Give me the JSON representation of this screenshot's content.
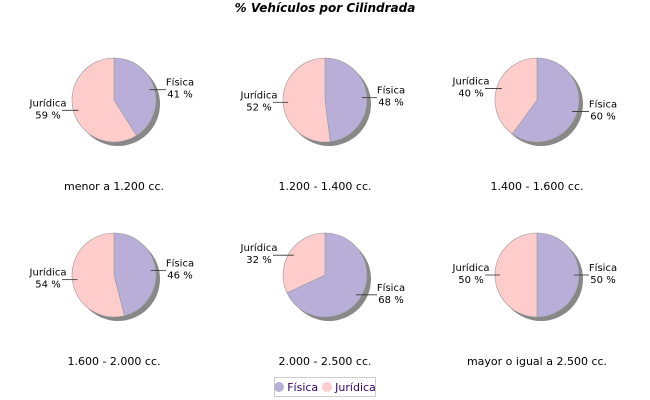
{
  "chart_data": {
    "type": "pie",
    "title": "% Vehículos por Cilindrada",
    "series_names": [
      "Física",
      "Jurídica"
    ],
    "colors": [
      "#B8AED8",
      "#FFCCCC"
    ],
    "legend": "bottom",
    "pies": [
      {
        "name": "menor a 1.200 cc.",
        "values": [
          41,
          59
        ]
      },
      {
        "name": "1.200 - 1.400 cc.",
        "values": [
          48,
          52
        ]
      },
      {
        "name": "1.400 - 1.600 cc.",
        "values": [
          60,
          40
        ]
      },
      {
        "name": "1.600 - 2.000 cc.",
        "values": [
          46,
          54
        ]
      },
      {
        "name": "2.000 - 2.500 cc.",
        "values": [
          68,
          32
        ]
      },
      {
        "name": "mayor o igual a 2.500 cc.",
        "values": [
          50,
          50
        ]
      }
    ]
  }
}
